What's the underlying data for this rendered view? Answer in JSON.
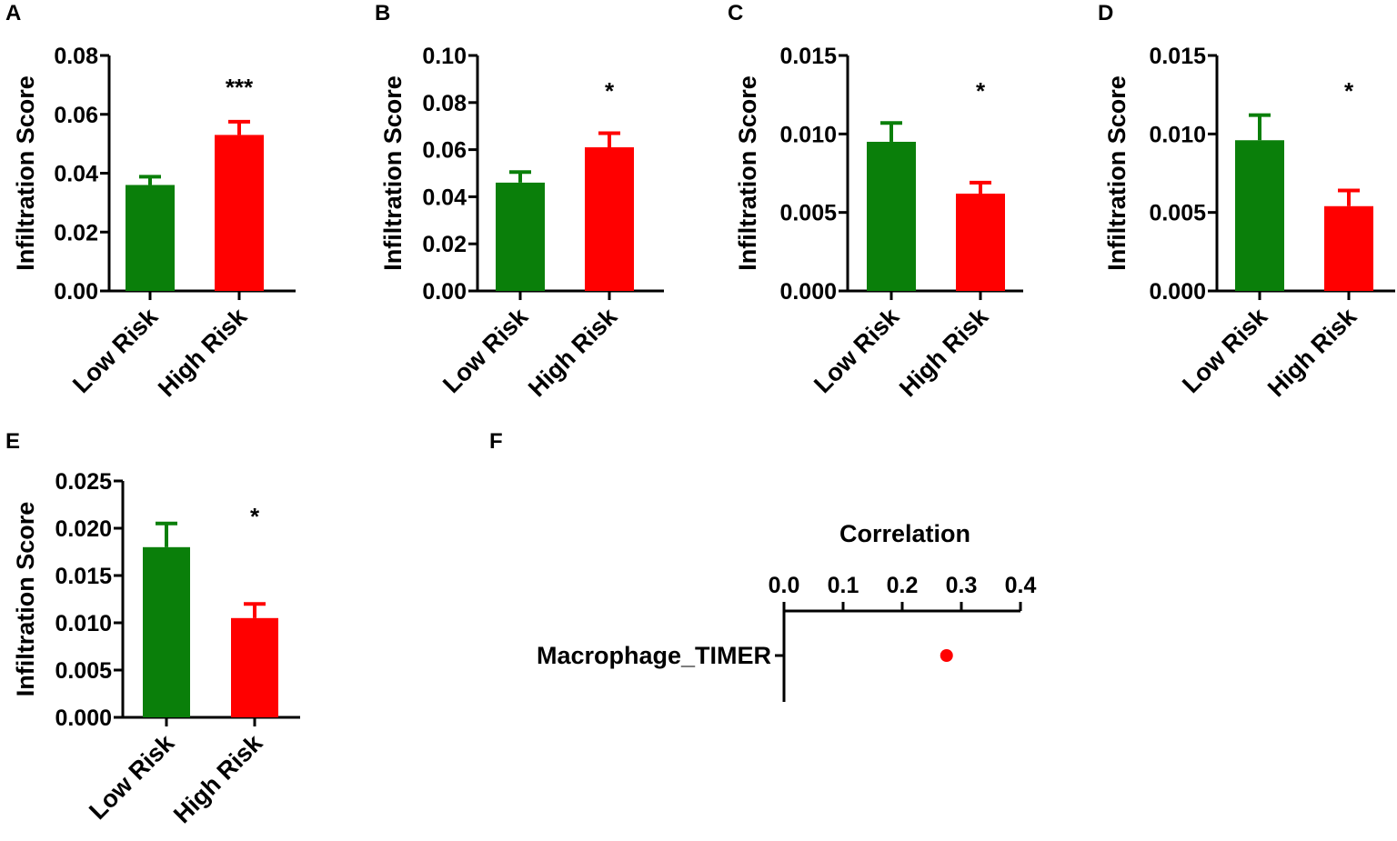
{
  "colors": {
    "low": "#0a7f0a",
    "high": "#ff0000",
    "axis": "#000000",
    "point": "#ff0000"
  },
  "chart_data": [
    {
      "panel": "A",
      "type": "bar",
      "ylabel": "Infiltration Score",
      "categories": [
        "Low Risk",
        "High Risk"
      ],
      "values": [
        0.036,
        0.053
      ],
      "errors": [
        0.0028,
        0.0045
      ],
      "ylim": [
        0,
        0.08
      ],
      "yticks": [
        "0.00",
        "0.02",
        "0.04",
        "0.06",
        "0.08"
      ],
      "significance": "***"
    },
    {
      "panel": "B",
      "type": "bar",
      "ylabel": "Infiltration Score",
      "categories": [
        "Low Risk",
        "High Risk"
      ],
      "values": [
        0.046,
        0.061
      ],
      "errors": [
        0.0045,
        0.006
      ],
      "ylim": [
        0,
        0.1
      ],
      "yticks": [
        "0.00",
        "0.02",
        "0.04",
        "0.06",
        "0.08",
        "0.10"
      ],
      "significance": "*"
    },
    {
      "panel": "C",
      "type": "bar",
      "ylabel": "Infiltration Score",
      "categories": [
        "Low Risk",
        "High Risk"
      ],
      "values": [
        0.0095,
        0.0062
      ],
      "errors": [
        0.0012,
        0.0007
      ],
      "ylim": [
        0,
        0.015
      ],
      "yticks": [
        "0.000",
        "0.005",
        "0.010",
        "0.015"
      ],
      "significance": "*"
    },
    {
      "panel": "D",
      "type": "bar",
      "ylabel": "Infiltration Score",
      "categories": [
        "Low Risk",
        "High Risk"
      ],
      "values": [
        0.0096,
        0.0054
      ],
      "errors": [
        0.0016,
        0.001
      ],
      "ylim": [
        0,
        0.015
      ],
      "yticks": [
        "0.000",
        "0.005",
        "0.010",
        "0.015"
      ],
      "significance": "*"
    },
    {
      "panel": "E",
      "type": "bar",
      "ylabel": "Infiltration Score",
      "categories": [
        "Low Risk",
        "High Risk"
      ],
      "values": [
        0.018,
        0.0105
      ],
      "errors": [
        0.0025,
        0.0015
      ],
      "ylim": [
        0,
        0.025
      ],
      "yticks": [
        "0.000",
        "0.005",
        "0.010",
        "0.015",
        "0.020",
        "0.025"
      ],
      "significance": "*"
    },
    {
      "panel": "F",
      "type": "scatter",
      "title": "Correlation",
      "categories": [
        "Macrophage_TIMER"
      ],
      "values": [
        0.275
      ],
      "xlim": [
        0,
        0.4
      ],
      "xticks": [
        "0.0",
        "0.1",
        "0.2",
        "0.3",
        "0.4"
      ]
    }
  ]
}
